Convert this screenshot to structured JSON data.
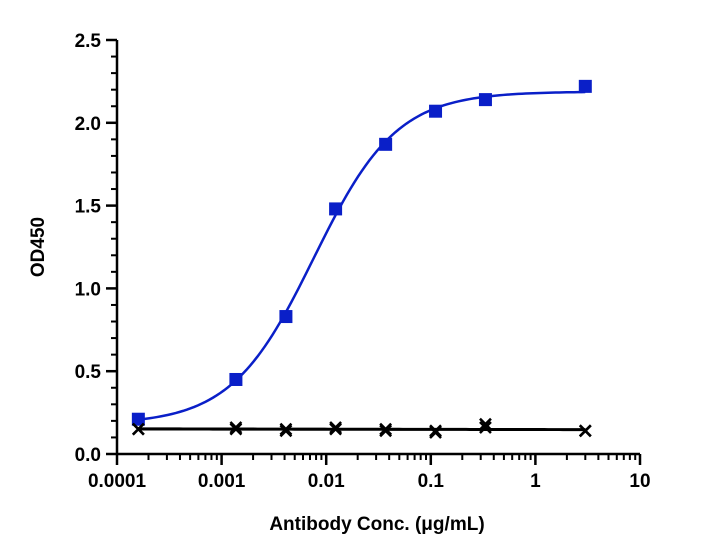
{
  "chart_data": {
    "type": "scatter",
    "title": "",
    "xlabel": "Antibody Conc. (μg/mL)",
    "ylabel": "OD450",
    "x_scale": "log",
    "xlim": [
      0.0001,
      10
    ],
    "ylim": [
      0,
      2.5
    ],
    "x_ticks": [
      0.0001,
      0.001,
      0.01,
      0.1,
      1,
      10
    ],
    "x_tick_labels": [
      "0.0001",
      "0.001",
      "0.01",
      "0.1",
      "1",
      "10"
    ],
    "y_ticks": [
      0,
      0.5,
      1.0,
      1.5,
      2.0,
      2.5
    ],
    "y_tick_labels": [
      "0.0",
      "0.5",
      "1.0",
      "1.5",
      "2.0",
      "2.5"
    ],
    "grid": false,
    "legend": "none",
    "series": [
      {
        "marker": "square",
        "color": "#0a1fc8",
        "fit": "sigmoidal 4PL",
        "x": [
          0.00016,
          0.00137,
          0.00412,
          0.0123,
          0.037,
          0.111,
          0.333,
          3.0
        ],
        "y": [
          0.21,
          0.45,
          0.83,
          1.48,
          1.87,
          2.07,
          2.14,
          2.22
        ]
      },
      {
        "marker": "x",
        "color": "#000000",
        "fit": "linear trend",
        "x": [
          0.00016,
          0.00137,
          0.00412,
          0.0123,
          0.037,
          0.111,
          0.333,
          3.0
        ],
        "y": [
          0.15,
          0.16,
          0.15,
          0.16,
          0.15,
          0.13,
          0.18,
          0.14
        ]
      },
      {
        "marker": "x",
        "color": "#000000",
        "fit": "linear trend",
        "x": [
          0.00016,
          0.00137,
          0.00412,
          0.0123,
          0.037,
          0.111,
          0.333,
          3.0
        ],
        "y": [
          0.15,
          0.15,
          0.14,
          0.15,
          0.14,
          0.14,
          0.16,
          0.14
        ]
      }
    ]
  }
}
